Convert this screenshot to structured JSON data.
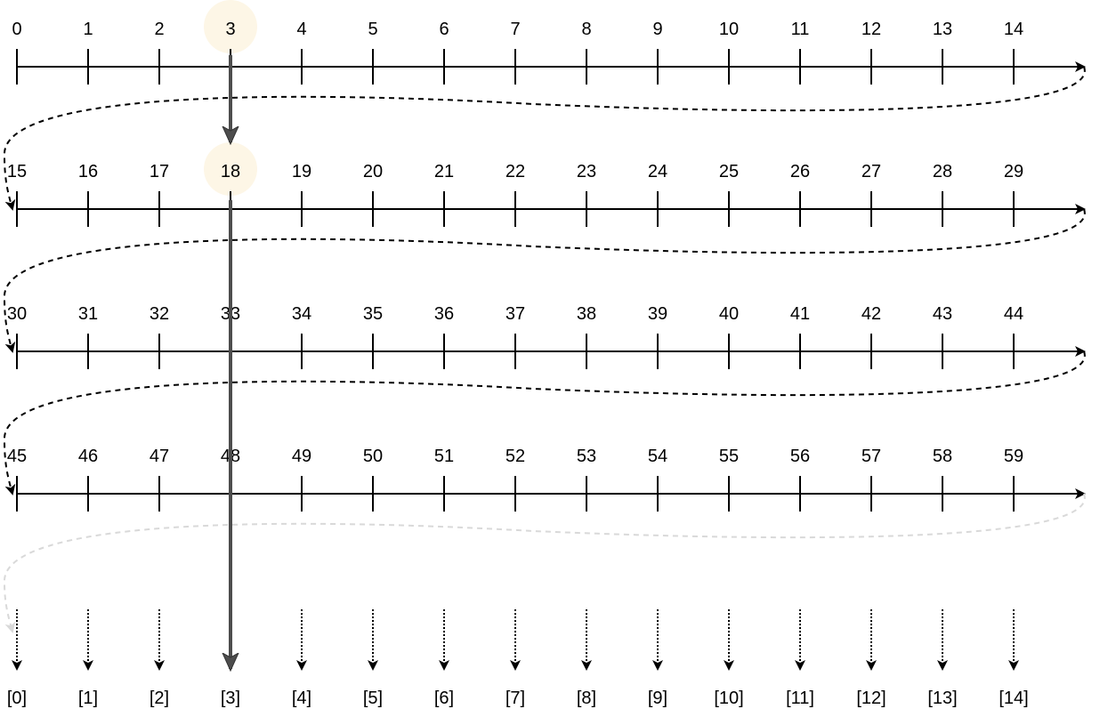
{
  "rows": [
    {
      "labels": [
        "0",
        "1",
        "2",
        "3",
        "4",
        "5",
        "6",
        "7",
        "8",
        "9",
        "10",
        "11",
        "12",
        "13",
        "14"
      ]
    },
    {
      "labels": [
        "15",
        "16",
        "17",
        "18",
        "19",
        "20",
        "21",
        "22",
        "23",
        "24",
        "25",
        "26",
        "27",
        "28",
        "29"
      ]
    },
    {
      "labels": [
        "30",
        "31",
        "32",
        "33",
        "34",
        "35",
        "36",
        "37",
        "38",
        "39",
        "40",
        "41",
        "42",
        "43",
        "44"
      ]
    },
    {
      "labels": [
        "45",
        "46",
        "47",
        "48",
        "49",
        "50",
        "51",
        "52",
        "53",
        "54",
        "55",
        "56",
        "57",
        "58",
        "59"
      ]
    }
  ],
  "highlighted": [
    "3",
    "18"
  ],
  "highlight_column": 3,
  "bucket_labels": [
    "[0]",
    "[1]",
    "[2]",
    "[3]",
    "[4]",
    "[5]",
    "[6]",
    "[7]",
    "[8]",
    "[9]",
    "[10]",
    "[11]",
    "[12]",
    "[13]",
    "[14]"
  ],
  "colors": {
    "axis": "#000000",
    "highlight_fill": "#fdf6e6",
    "highlight_arrow": "#4d4d4d",
    "faded_wrap": "#d9d9d9"
  }
}
